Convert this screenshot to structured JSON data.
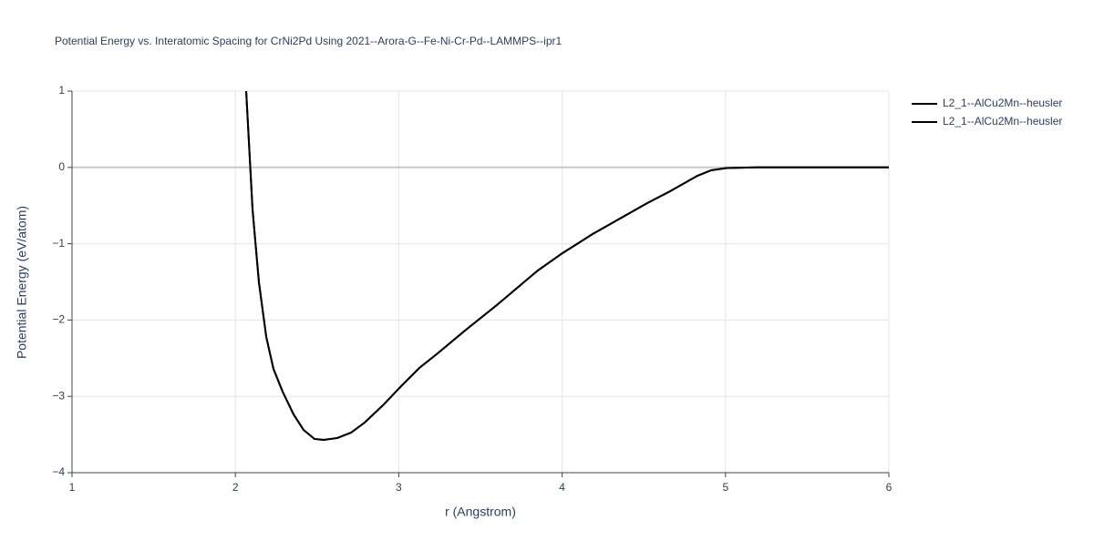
{
  "chart_data": {
    "type": "line",
    "title": "Potential Energy vs. Interatomic Spacing for CrNi2Pd Using 2021--Arora-G--Fe-Ni-Cr-Pd--LAMMPS--ipr1",
    "x_label": "r (Angstrom)",
    "y_label": "Potential Energy (eV/atom)",
    "x": [
      2.066,
      2.105,
      2.144,
      2.189,
      2.233,
      2.289,
      2.356,
      2.417,
      2.484,
      2.54,
      2.624,
      2.708,
      2.791,
      2.903,
      3.015,
      3.126,
      3.238,
      3.405,
      3.6,
      3.851,
      4.002,
      4.186,
      4.521,
      4.661,
      4.828,
      4.912,
      5.007,
      5.19,
      6
    ],
    "series": [
      {
        "name": "L2_1--AlCu2Mn--heusler",
        "color": "#000000",
        "values": [
          1,
          -0.551,
          -1.506,
          -2.222,
          -2.64,
          -2.938,
          -3.236,
          -3.439,
          -3.558,
          -3.57,
          -3.546,
          -3.475,
          -3.344,
          -3.117,
          -2.866,
          -2.628,
          -2.437,
          -2.138,
          -1.804,
          -1.351,
          -1.124,
          -0.874,
          -0.468,
          -0.313,
          -0.11,
          -0.038,
          -0.008,
          0,
          0
        ]
      },
      {
        "name": "L2_1--AlCu2Mn--heusler",
        "color": "#000000",
        "values": [
          1,
          -0.551,
          -1.506,
          -2.222,
          -2.64,
          -2.938,
          -3.236,
          -3.439,
          -3.558,
          -3.57,
          -3.546,
          -3.475,
          -3.344,
          -3.117,
          -2.866,
          -2.628,
          -2.437,
          -2.138,
          -1.804,
          -1.351,
          -1.124,
          -0.874,
          -0.468,
          -0.313,
          -0.11,
          -0.038,
          -0.008,
          0,
          0
        ]
      }
    ],
    "xlim": [
      1,
      6
    ],
    "xticks": [
      1,
      2,
      3,
      4,
      5,
      6
    ],
    "ylim": [
      -4,
      1
    ],
    "yticks": [
      {
        "value": -4,
        "label": "−4"
      },
      {
        "value": -3,
        "label": "−3"
      },
      {
        "value": -2,
        "label": "−2"
      },
      {
        "value": -1,
        "label": "−1"
      },
      0,
      1
    ],
    "grid": true
  }
}
